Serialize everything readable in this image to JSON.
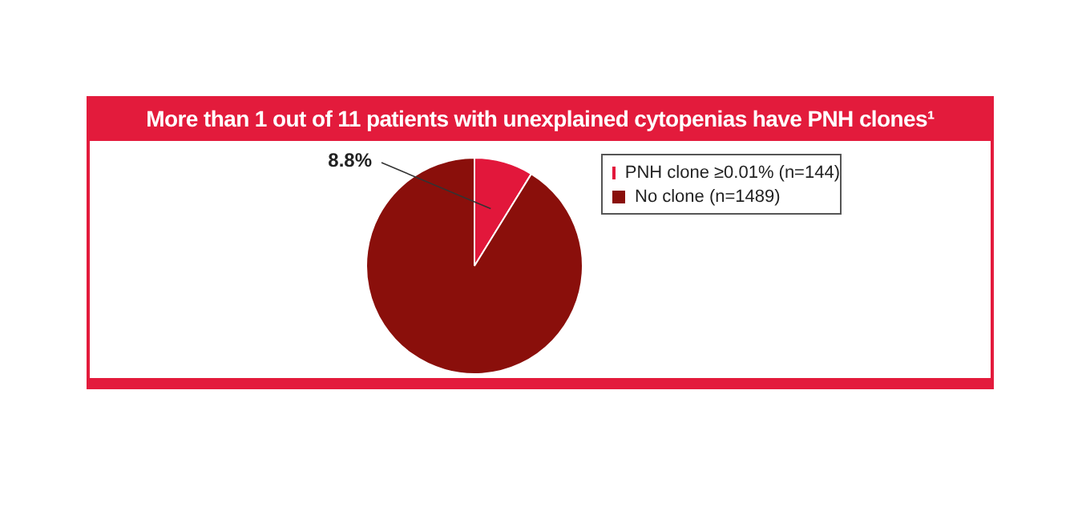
{
  "chart_data": {
    "type": "pie",
    "title": "More than 1 out of 11 patients with unexplained cytopenias have PNH clones¹",
    "categories": [
      "PNH clone ≥0.01% (n=144)",
      "No clone (n=1489)"
    ],
    "values": [
      8.8,
      91.2
    ],
    "colors": [
      "#e2173b",
      "#8a0f0b"
    ],
    "value_labels": [
      "8.8%",
      null
    ],
    "legend": "right"
  }
}
